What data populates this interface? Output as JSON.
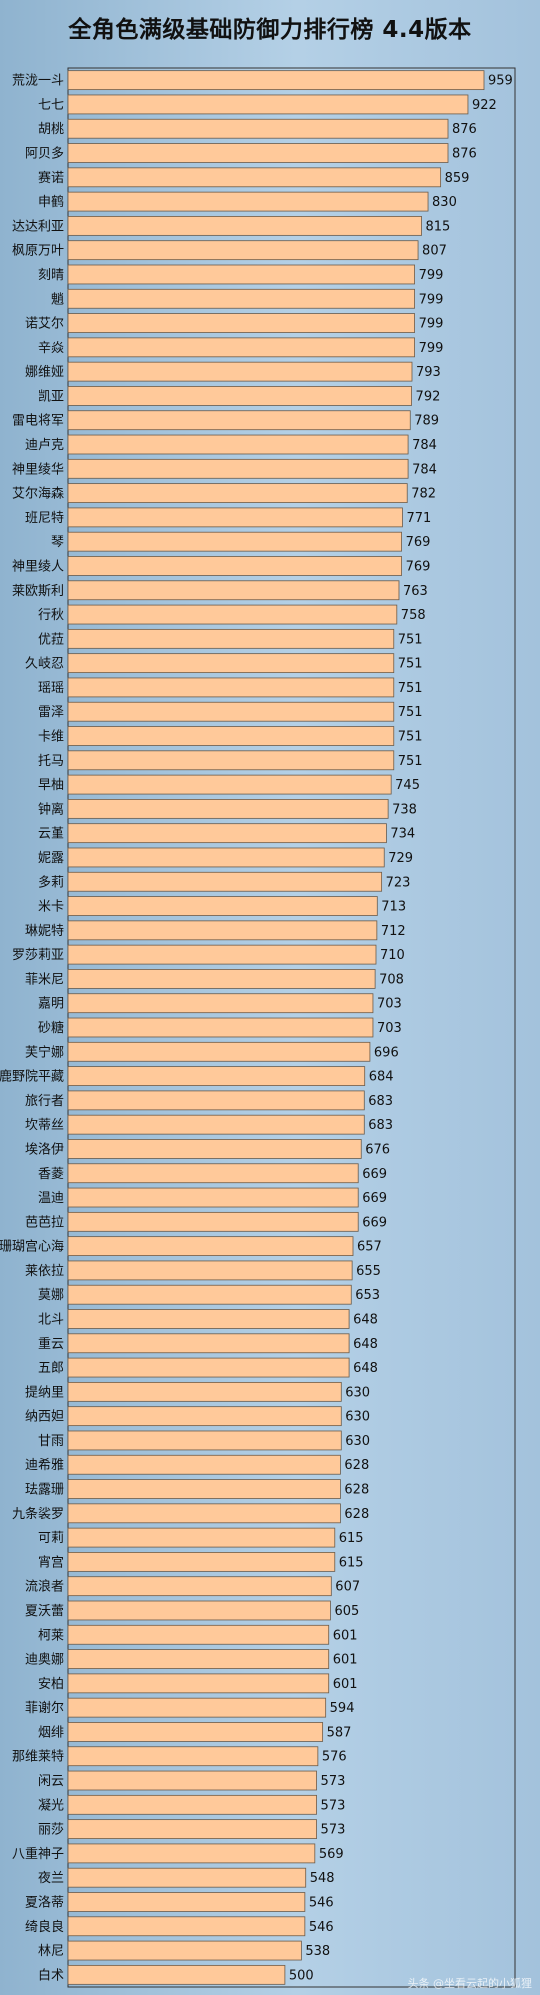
{
  "title": "全角色满级基础防御力排行榜  4.4版本",
  "watermark": "头条 @坐看云起的小狐狸",
  "chart_data": {
    "type": "bar",
    "orientation": "horizontal",
    "title": "全角色满级基础防御力排行榜  4.4版本",
    "xlabel": "",
    "ylabel": "",
    "xlim": [
      0,
      980
    ],
    "grid": false,
    "bar_color": "#ffc99a",
    "categories": [
      "荒泷一斗",
      "七七",
      "胡桃",
      "阿贝多",
      "赛诺",
      "申鹤",
      "达达利亚",
      "枫原万叶",
      "刻晴",
      "魈",
      "诺艾尔",
      "辛焱",
      "娜维娅",
      "凯亚",
      "雷电将军",
      "迪卢克",
      "神里绫华",
      "艾尔海森",
      "班尼特",
      "琴",
      "神里绫人",
      "莱欧斯利",
      "行秋",
      "优菈",
      "久岐忍",
      "瑶瑶",
      "雷泽",
      "卡维",
      "托马",
      "早柚",
      "钟离",
      "云堇",
      "妮露",
      "多莉",
      "米卡",
      "琳妮特",
      "罗莎莉亚",
      "菲米尼",
      "嘉明",
      "砂糖",
      "芙宁娜",
      "鹿野院平藏",
      "旅行者",
      "坎蒂丝",
      "埃洛伊",
      "香菱",
      "温迪",
      "芭芭拉",
      "珊瑚宫心海",
      "莱依拉",
      "莫娜",
      "北斗",
      "重云",
      "五郎",
      "提纳里",
      "纳西妲",
      "甘雨",
      "迪希雅",
      "珐露珊",
      "九条裟罗",
      "可莉",
      "宵宫",
      "流浪者",
      "夏沃蕾",
      "柯莱",
      "迪奥娜",
      "安柏",
      "菲谢尔",
      "烟绯",
      "那维莱特",
      "闲云",
      "凝光",
      "丽莎",
      "八重神子",
      "夜兰",
      "夏洛蒂",
      "绮良良",
      "林尼",
      "白术"
    ],
    "values": [
      959,
      922,
      876,
      876,
      859,
      830,
      815,
      807,
      799,
      799,
      799,
      799,
      793,
      792,
      789,
      784,
      784,
      782,
      771,
      769,
      769,
      763,
      758,
      751,
      751,
      751,
      751,
      751,
      751,
      745,
      738,
      734,
      729,
      723,
      713,
      712,
      710,
      708,
      703,
      703,
      696,
      684,
      683,
      683,
      676,
      669,
      669,
      669,
      657,
      655,
      653,
      648,
      648,
      648,
      630,
      630,
      630,
      628,
      628,
      628,
      615,
      615,
      607,
      605,
      601,
      601,
      601,
      594,
      587,
      576,
      573,
      573,
      573,
      569,
      548,
      546,
      546,
      538,
      500
    ]
  }
}
